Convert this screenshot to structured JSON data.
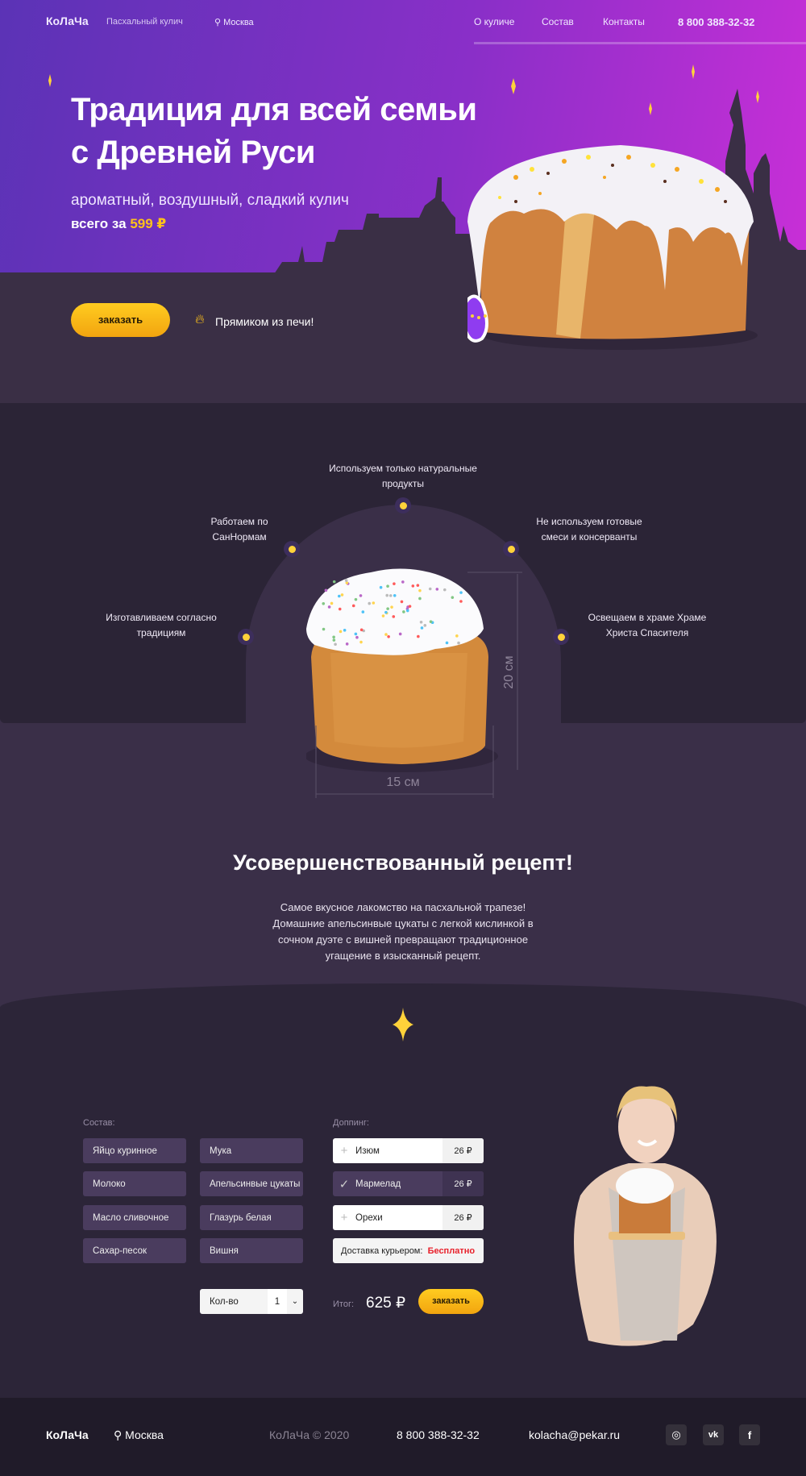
{
  "header": {
    "logo": "КоЛаЧа",
    "tagline": "Пасхальный кулич",
    "city": "Москва",
    "nav": [
      "О куличе",
      "Состав",
      "Контакты"
    ],
    "phone": "8 800 388-32-32"
  },
  "hero": {
    "title_line1": "Традиция для всей семьи",
    "title_line2": "с Древней Руси",
    "subtitle": "ароматный, воздушный, сладкий кулич",
    "price_prefix": "всего за",
    "price": "599 ₽",
    "order_button": "заказать",
    "fresh_note": "Прямиком из печи!"
  },
  "features": {
    "items": [
      "Используем только натуральные продукты",
      "Работаем по СанНормам",
      "Не используем готовые смеси и консерванты",
      "Изготавливаем согласно традициям",
      "Освещаем в храме Храме Христа Спасителя"
    ],
    "height": "20 см",
    "width": "15 см"
  },
  "recipe": {
    "title": "Усовершенствованный рецепт!",
    "text": "Самое вкусное лакомство на пасхальной трапезе! Домашние апельсинвые цукаты с легкой кислинкой в сочном дуэте с вишней превращают традиционное угащение в изысканный рецепт."
  },
  "order": {
    "ingredients_label": "Состав:",
    "ingredients": [
      "Яйцо куринное",
      "Мука",
      "Молоко",
      "Апельсинвые цукаты",
      "Масло сливочное",
      "Глазурь белая",
      "Сахар-песок",
      "Вишня"
    ],
    "topping_label": "Доппинг:",
    "toppings": [
      {
        "name": "Изюм",
        "price": "26 ₽",
        "selected": false
      },
      {
        "name": "Мармелад",
        "price": "26 ₽",
        "selected": true
      },
      {
        "name": "Орехи",
        "price": "26 ₽",
        "selected": false
      }
    ],
    "delivery_label": "Доставка курьером:",
    "delivery_value": "Бесплатно",
    "qty_label": "Кол-во",
    "qty_value": "1",
    "total_label": "Итог:",
    "total": "625 ₽",
    "order_button": "заказать"
  },
  "footer": {
    "logo": "КоЛаЧа",
    "city": "Москва",
    "copyright": "КоЛаЧа © 2020",
    "phone": "8 800 388-32-32",
    "email": "kolacha@pekar.ru",
    "social": [
      "instagram-icon",
      "vk-icon",
      "facebook-icon"
    ]
  },
  "colors": {
    "accent": "#ffc21a",
    "purple_start": "#5b33b6",
    "purple_end": "#cc2fd8",
    "free_delivery": "#e8212b"
  }
}
